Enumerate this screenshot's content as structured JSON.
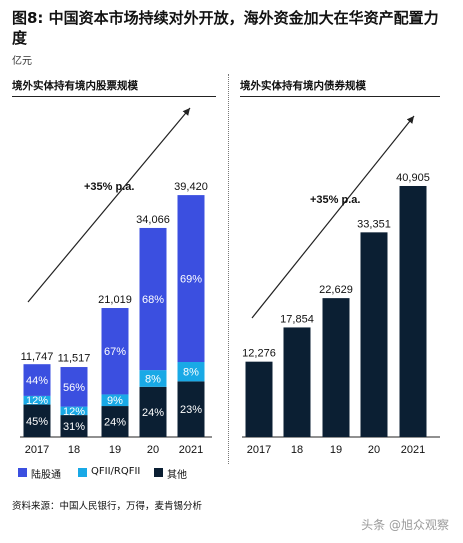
{
  "figure": {
    "title": "图8: 中国资本市场持续对外开放，海外资金加大在华资产配置力度",
    "unit": "亿元",
    "source": "资料来源：中国人民银行，万得，麦肯锡分析",
    "watermark": "头条 @旭众观察"
  },
  "colors": {
    "stock_connect": "#3b4fe0",
    "qfii": "#19a9e6",
    "other": "#0b1f33",
    "bond": "#0b1f33"
  },
  "chart_data": [
    {
      "type": "bar",
      "stacked": true,
      "title": "境外实体持有境内股票规模",
      "categories": [
        "2017",
        "18",
        "19",
        "20",
        "2021"
      ],
      "totals": [
        11747,
        11517,
        21019,
        34066,
        39420
      ],
      "total_labels": [
        "11,747",
        "11,517",
        "21,019",
        "34,066",
        "39,420"
      ],
      "series": [
        {
          "name": "其他",
          "color": "#0b1f33",
          "shares": [
            45,
            31,
            24,
            24,
            23
          ],
          "labels": [
            "45%",
            "31%",
            "24%",
            "24%",
            "23%"
          ]
        },
        {
          "name": "QFII/RQFII",
          "color": "#19a9e6",
          "shares": [
            12,
            12,
            9,
            8,
            8
          ],
          "labels": [
            "12%",
            "12%",
            "9%",
            "8%",
            "8%"
          ]
        },
        {
          "name": "陆股通",
          "color": "#3b4fe0",
          "shares": [
            44,
            56,
            67,
            68,
            69
          ],
          "labels": [
            "44%",
            "56%",
            "67%",
            "68%",
            "69%"
          ]
        }
      ],
      "growth_annotation": "+35% p.a.",
      "ylim": [
        0,
        44000
      ],
      "legend": [
        "陆股通",
        "QFII/RQFII",
        "其他"
      ],
      "legend_position": "bottom"
    },
    {
      "type": "bar",
      "title": "境外实体持有境内债券规模",
      "categories": [
        "2017",
        "18",
        "19",
        "20",
        "2021"
      ],
      "values": [
        12276,
        17854,
        22629,
        33351,
        40905
      ],
      "value_labels": [
        "12,276",
        "17,854",
        "22,629",
        "33,351",
        "40,905"
      ],
      "color": "#0b1f33",
      "growth_annotation": "+35% p.a.",
      "ylim": [
        0,
        44000
      ]
    }
  ]
}
